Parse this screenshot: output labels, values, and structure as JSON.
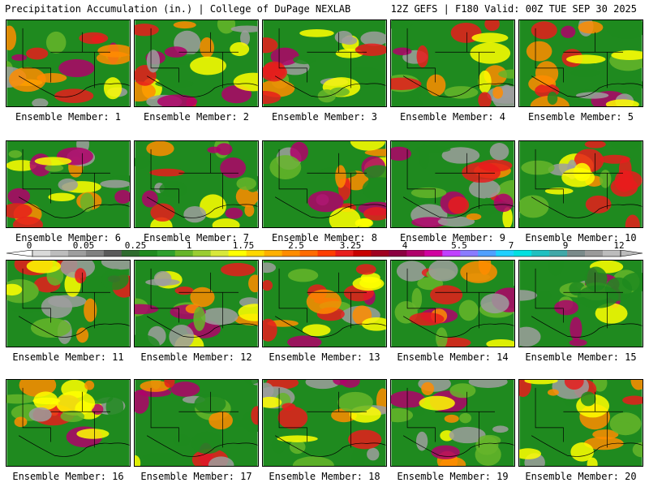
{
  "header": {
    "left": "Precipitation Accumulation (in.) | College of DuPage NEXLAB",
    "right": "12Z GEFS | F180 Valid: 00Z TUE SEP 30 2025"
  },
  "panels": [
    {
      "label": "Ensemble Member: 1"
    },
    {
      "label": "Ensemble Member: 2"
    },
    {
      "label": "Ensemble Member: 3"
    },
    {
      "label": "Ensemble Member: 4"
    },
    {
      "label": "Ensemble Member: 5"
    },
    {
      "label": "Ensemble Member: 6"
    },
    {
      "label": "Ensemble Member: 7"
    },
    {
      "label": "Ensemble Member: 8"
    },
    {
      "label": "Ensemble Member: 9"
    },
    {
      "label": "Ensemble Member: 10"
    },
    {
      "label": "Ensemble Member: 11"
    },
    {
      "label": "Ensemble Member: 12"
    },
    {
      "label": "Ensemble Member: 13"
    },
    {
      "label": "Ensemble Member: 14"
    },
    {
      "label": "Ensemble Member: 15"
    },
    {
      "label": "Ensemble Member: 16"
    },
    {
      "label": "Ensemble Member: 17"
    },
    {
      "label": "Ensemble Member: 18"
    },
    {
      "label": "Ensemble Member: 19"
    },
    {
      "label": "Ensemble Member: 20"
    }
  ],
  "colorbar": {
    "ticks": [
      "0",
      "0.05",
      "0.25",
      "1",
      "1.75",
      "2.5",
      "3.25",
      "4",
      "5.5",
      "7",
      "9",
      "12"
    ],
    "colors": [
      "#d9d9d9",
      "#bdbdbd",
      "#9e9e9e",
      "#808080",
      "#5a5a5a",
      "#2f6b2f",
      "#1f8a1f",
      "#2ea02e",
      "#66b52a",
      "#9acd32",
      "#d8e83a",
      "#ffff00",
      "#ffd700",
      "#ffb000",
      "#ff8c00",
      "#ff6a00",
      "#ff3c00",
      "#e81c1c",
      "#c80000",
      "#a00020",
      "#8b0040",
      "#b0006a",
      "#d100a0",
      "#c040ff",
      "#8a7bff",
      "#4fa0ff",
      "#20d0ff",
      "#00e0e0",
      "#20c0c0",
      "#40a8a8",
      "#7a8a8a",
      "#9a9a9a",
      "#bcbcbc"
    ]
  },
  "map_palette": {
    "green": "#1f8a1f",
    "light_green": "#66b52a",
    "yellow": "#ffff00",
    "orange": "#ff8c00",
    "red": "#e81c1c",
    "gray": "#9e9e9e",
    "magenta": "#b0006a"
  }
}
